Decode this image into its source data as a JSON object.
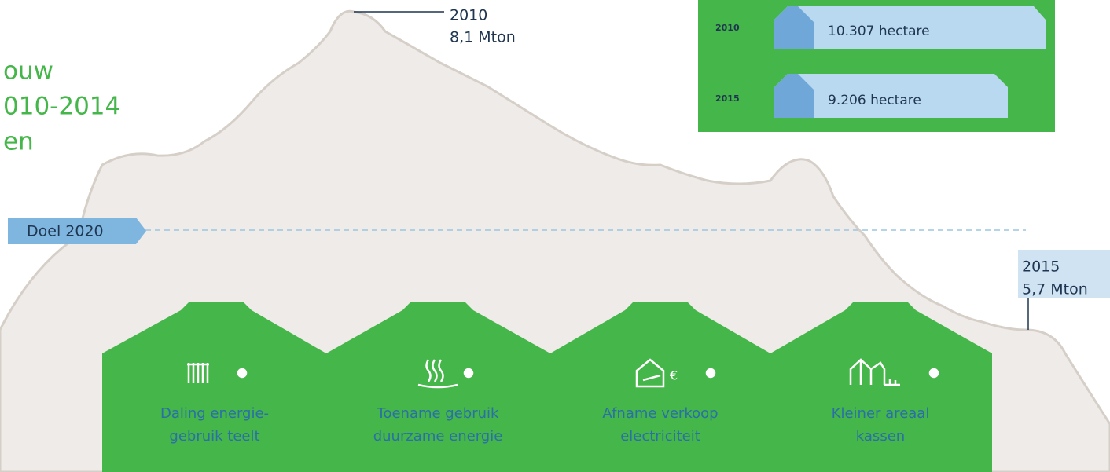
{
  "title_lines": [
    "ouw",
    "010-2014",
    "en"
  ],
  "peak": {
    "year": "2010",
    "value": "8,1 Mton"
  },
  "end": {
    "year": "2015",
    "value": "5,7 Mton"
  },
  "target": "Doel 2020",
  "area": [
    {
      "year": "2010",
      "label": "10.307 hectare"
    },
    {
      "year": "2015",
      "label": "9.206 hectare"
    }
  ],
  "factors": [
    {
      "lines": [
        "Daling energie-",
        "gebruik teelt"
      ]
    },
    {
      "lines": [
        "Toename gebruik",
        "duurzame energie"
      ]
    },
    {
      "lines": [
        "Afname verkoop",
        "electriciteit"
      ]
    },
    {
      "lines": [
        "Kleiner areaal",
        "kassen"
      ]
    }
  ]
}
